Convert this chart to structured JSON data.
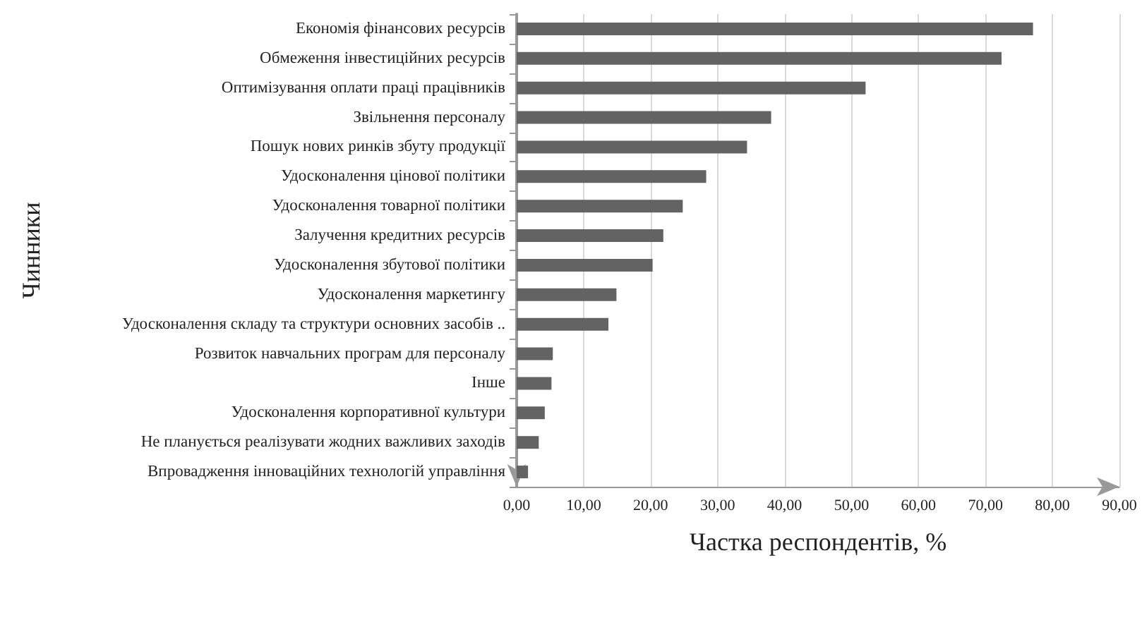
{
  "chart_data": {
    "type": "bar",
    "orientation": "horizontal",
    "xlabel": "Частка респондентів, %",
    "ylabel": "Чинники",
    "categories": [
      "Економія фінансових ресурсів",
      "Обмеження інвестиційних ресурсів",
      "Оптимізування оплати праці працівників",
      "Звільнення персоналу",
      "Пошук нових ринків збуту продукції",
      "Удосконалення цінової політики",
      "Удосконалення товарної політики",
      "Залучення кредитних ресурсів",
      "Удосконалення збутової політики",
      "Удосконалення маркетингу",
      "Удосконалення складу та структури основних засобів ..",
      "Розвиток навчальних програм для персоналу",
      "Інше",
      "Удосконалення корпоративної культури",
      "Не планується реалізувати жодних важливих заходів",
      "Впровадження інноваційних технологій управління"
    ],
    "values": [
      77.1,
      72.4,
      52.1,
      38.0,
      34.4,
      28.3,
      24.8,
      21.9,
      20.3,
      14.9,
      13.7,
      5.4,
      5.2,
      4.2,
      3.3,
      1.7
    ],
    "color": "#636363",
    "xlim": [
      0,
      90
    ],
    "xticks": [
      {
        "value": 0,
        "label": "0,00"
      },
      {
        "value": 10,
        "label": "10,00"
      },
      {
        "value": 20,
        "label": "20,00"
      },
      {
        "value": 30,
        "label": "30,00"
      },
      {
        "value": 40,
        "label": "40,00"
      },
      {
        "value": 50,
        "label": "50,00"
      },
      {
        "value": 60,
        "label": "60,00"
      },
      {
        "value": 70,
        "label": "70,00"
      },
      {
        "value": 80,
        "label": "80,00"
      },
      {
        "value": 90,
        "label": "90,00"
      }
    ],
    "grid": "x"
  }
}
